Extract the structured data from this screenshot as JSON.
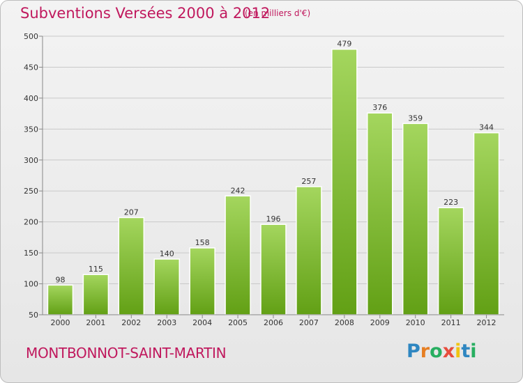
{
  "header": {
    "title": "Subventions Versées 2000 à 2012",
    "unit": "(en milliers d'€)"
  },
  "footer": {
    "commune": "MONTBONNOT-SAINT-MARTIN",
    "logo_letters": [
      "P",
      "r",
      "o",
      "x",
      "i",
      "t",
      "i"
    ],
    "logo_colors": [
      "#2e86c1",
      "#e67e22",
      "#27ae60",
      "#e74c3c",
      "#f1c40f",
      "#2e86c1",
      "#27ae60"
    ]
  },
  "colors": {
    "title": "#c0185d",
    "bar_top": "#a4d65e",
    "bar_bottom": "#62a015"
  },
  "chart_data": {
    "type": "bar",
    "categories": [
      "2000",
      "2001",
      "2002",
      "2003",
      "2004",
      "2005",
      "2006",
      "2007",
      "2008",
      "2009",
      "2010",
      "2011",
      "2012"
    ],
    "values": [
      98,
      115,
      207,
      140,
      158,
      242,
      196,
      257,
      479,
      376,
      359,
      223,
      344
    ],
    "ylim": [
      50,
      500
    ],
    "yticks": [
      50,
      100,
      150,
      200,
      250,
      300,
      350,
      400,
      450,
      500
    ],
    "grid": true,
    "title": "Subventions Versées 2000 à 2012",
    "ylabel": "(en milliers d'€)"
  }
}
